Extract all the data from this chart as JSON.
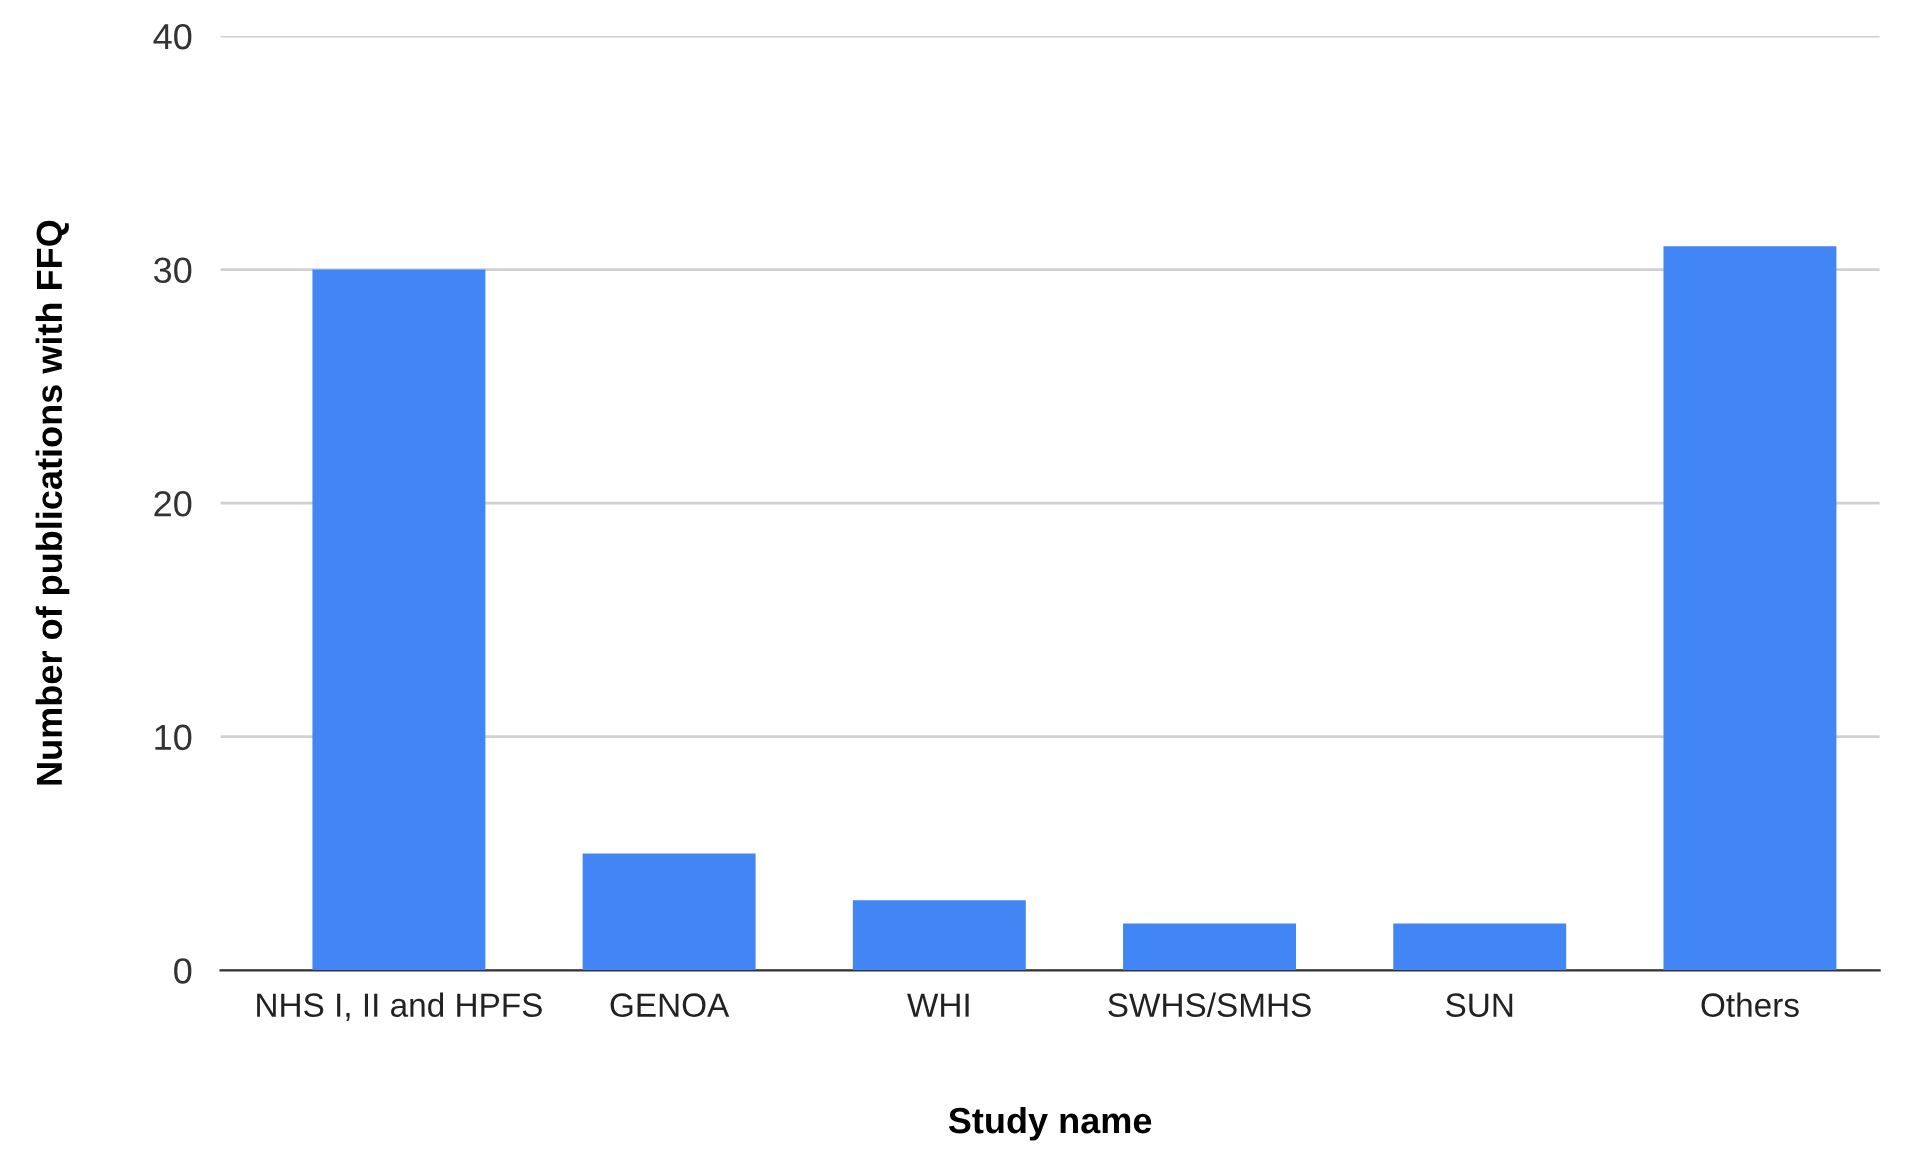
{
  "chart_data": {
    "type": "bar",
    "xlabel": "Study name",
    "ylabel": "Number of publications with FFQ",
    "categories": [
      "NHS I, II and HPFS",
      "GENOA",
      "WHI",
      "SWHS/SMHS",
      "SUN",
      "Others"
    ],
    "values": [
      30,
      5,
      3,
      2,
      2,
      31
    ],
    "color": "#4285f4",
    "ylim": [
      0,
      40
    ],
    "yticks": [
      0,
      10,
      20,
      30,
      40
    ],
    "grid": "y"
  }
}
